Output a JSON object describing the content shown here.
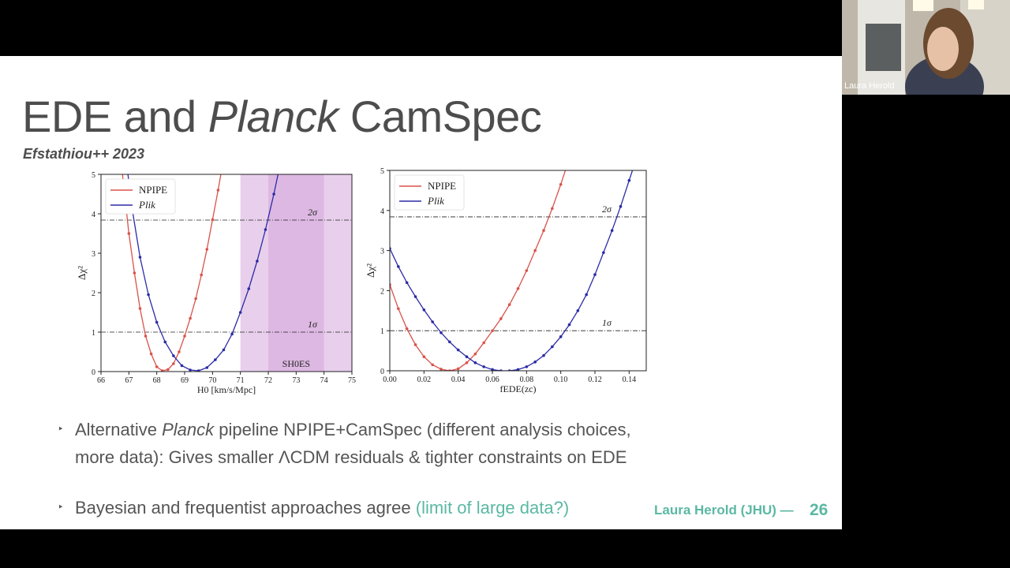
{
  "slide": {
    "title_part1": "EDE and ",
    "title_italic": "Planck",
    "title_part2": " CamSpec",
    "subtitle": "Efstathiou++ 2023",
    "bullet1_line1_a": "Alternative ",
    "bullet1_line1_italic": "Planck",
    "bullet1_line1_b": " pipeline NPIPE+CamSpec (different analysis choices,",
    "bullet1_line2": "more data): Gives smaller ΛCDM residuals & tighter constraints on EDE",
    "bullet2_a": "Bayesian and frequentist approaches agree ",
    "bullet2_teal": "(limit of large data?)",
    "footer": "Laura Herold (JHU) —",
    "page_number": "26",
    "bullet_marker": "‣"
  },
  "webcam": {
    "name": "Laura Herold"
  },
  "colors": {
    "npipe": "#d9534a",
    "plik": "#2b2ba6",
    "accent": "#5bb8a3",
    "band": "#d6a8dc"
  },
  "chart_data": [
    {
      "type": "line",
      "xlabel": "H0 [km/s/Mpc]",
      "ylabel": "Δχ²",
      "xlim": [
        66,
        75
      ],
      "ylim": [
        0,
        5
      ],
      "xticks": [
        "66",
        "67",
        "68",
        "69",
        "70",
        "71",
        "72",
        "73",
        "74",
        "75"
      ],
      "yticks": [
        "0",
        "1",
        "2",
        "3",
        "4",
        "5"
      ],
      "legend": [
        "NPIPE",
        "Plik"
      ],
      "hlines": [
        {
          "y": 1,
          "label": "1σ"
        },
        {
          "y": 3.84,
          "label": "2σ"
        }
      ],
      "band": {
        "x": [
          71,
          75
        ],
        "label": "SH0ES"
      },
      "series": [
        {
          "name": "NPIPE",
          "color": "#d9534a",
          "x": [
            66.6,
            66.8,
            67.0,
            67.2,
            67.4,
            67.6,
            67.8,
            68.0,
            68.2,
            68.4,
            68.6,
            68.8,
            69.0,
            69.2,
            69.4,
            69.6,
            69.8,
            70.0,
            70.2,
            70.4,
            70.6
          ],
          "y": [
            6.2,
            4.8,
            3.5,
            2.5,
            1.6,
            0.9,
            0.45,
            0.12,
            0.02,
            0.05,
            0.2,
            0.5,
            0.9,
            1.35,
            1.85,
            2.45,
            3.1,
            3.85,
            4.6,
            5.4,
            6.3
          ]
        },
        {
          "name": "Plik",
          "color": "#2b2ba6",
          "x": [
            66.8,
            67.1,
            67.4,
            67.7,
            68.0,
            68.3,
            68.6,
            68.9,
            69.2,
            69.5,
            69.8,
            70.1,
            70.4,
            70.7,
            71.0,
            71.3,
            71.6,
            71.9,
            72.2,
            72.5
          ],
          "y": [
            6.0,
            4.2,
            2.9,
            1.95,
            1.25,
            0.75,
            0.4,
            0.15,
            0.04,
            0.02,
            0.1,
            0.3,
            0.55,
            0.95,
            1.5,
            2.1,
            2.8,
            3.6,
            4.5,
            5.5
          ]
        }
      ]
    },
    {
      "type": "line",
      "xlabel": "fEDE(zc)",
      "ylabel": "Δχ²",
      "xlim": [
        0,
        0.15
      ],
      "ylim": [
        0,
        5
      ],
      "xticks": [
        "0.00",
        "0.02",
        "0.04",
        "0.06",
        "0.08",
        "0.10",
        "0.12",
        "0.14"
      ],
      "yticks": [
        "0",
        "1",
        "2",
        "3",
        "4",
        "5"
      ],
      "legend": [
        "NPIPE",
        "Plik"
      ],
      "hlines": [
        {
          "y": 1,
          "label": "1σ"
        },
        {
          "y": 3.84,
          "label": "2σ"
        }
      ],
      "series": [
        {
          "name": "NPIPE",
          "color": "#d9534a",
          "x": [
            0.0,
            0.005,
            0.01,
            0.015,
            0.02,
            0.025,
            0.03,
            0.035,
            0.04,
            0.045,
            0.05,
            0.055,
            0.06,
            0.065,
            0.07,
            0.075,
            0.08,
            0.085,
            0.09,
            0.095,
            0.1,
            0.105
          ],
          "y": [
            2.15,
            1.55,
            1.05,
            0.65,
            0.35,
            0.15,
            0.04,
            0.0,
            0.05,
            0.2,
            0.42,
            0.7,
            1.0,
            1.3,
            1.65,
            2.05,
            2.5,
            3.0,
            3.5,
            4.05,
            4.65,
            5.3
          ]
        },
        {
          "name": "Plik",
          "color": "#2b2ba6",
          "x": [
            0.0,
            0.005,
            0.01,
            0.015,
            0.02,
            0.025,
            0.03,
            0.035,
            0.04,
            0.045,
            0.05,
            0.055,
            0.06,
            0.065,
            0.07,
            0.075,
            0.08,
            0.085,
            0.09,
            0.095,
            0.1,
            0.105,
            0.11,
            0.115,
            0.12,
            0.125,
            0.13,
            0.135,
            0.14,
            0.145
          ],
          "y": [
            3.05,
            2.6,
            2.2,
            1.85,
            1.52,
            1.22,
            0.95,
            0.72,
            0.52,
            0.35,
            0.2,
            0.1,
            0.03,
            0.0,
            0.0,
            0.03,
            0.1,
            0.22,
            0.38,
            0.6,
            0.85,
            1.15,
            1.5,
            1.9,
            2.4,
            2.95,
            3.5,
            4.1,
            4.75,
            5.4
          ]
        }
      ]
    }
  ]
}
